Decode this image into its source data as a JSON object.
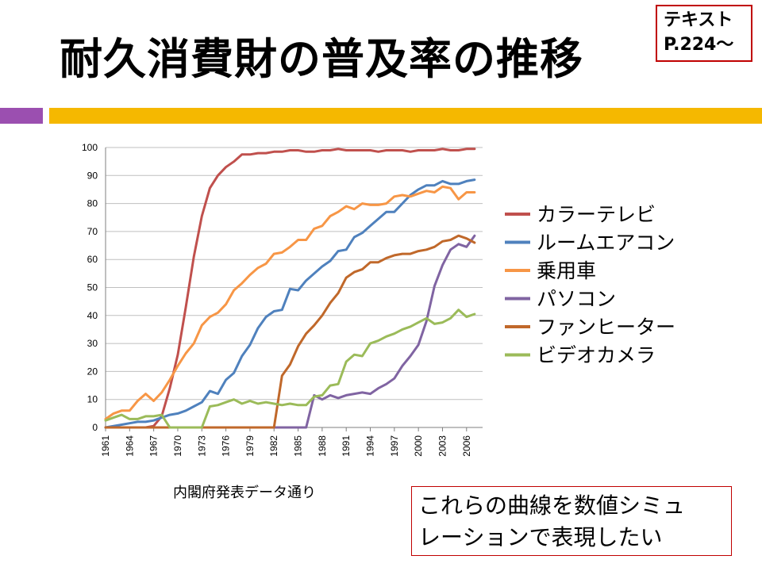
{
  "title": "耐久消費財の普及率の推移",
  "ref": {
    "line1": "テキスト",
    "line2": "P.224〜"
  },
  "source": "内閣府発表データ通り",
  "note": {
    "line1": "これらの曲線を数値シミュ",
    "line2": "レーションで表現したい"
  },
  "colors": {
    "accent_left": "#9b4fb0",
    "accent_right": "#f5b800",
    "box_border": "#c00000"
  },
  "chart_data": {
    "type": "line",
    "ylim": [
      0,
      100
    ],
    "xlim": [
      1961,
      2008
    ],
    "grid": true,
    "legend": "right",
    "yticks": [
      0,
      10,
      20,
      30,
      40,
      50,
      60,
      70,
      80,
      90,
      100
    ],
    "xticks": [
      1961,
      1964,
      1967,
      1970,
      1973,
      1976,
      1979,
      1982,
      1985,
      1988,
      1991,
      1994,
      1997,
      2000,
      2003,
      2006
    ],
    "series": [
      {
        "name": "カラーテレビ",
        "color": "#c0504d",
        "x": [
          1961,
          1966,
          1967,
          1968,
          1969,
          1970,
          1971,
          1972,
          1973,
          1974,
          1975,
          1976,
          1977,
          1978,
          1979,
          1980,
          1981,
          1982,
          1983,
          1984,
          1985,
          1986,
          1987,
          1988,
          1989,
          1990,
          1991,
          1992,
          1993,
          1994,
          1995,
          1996,
          1997,
          1998,
          1999,
          2000,
          2001,
          2002,
          2003,
          2004,
          2005,
          2006,
          2007
        ],
        "y": [
          0,
          0,
          0.5,
          4,
          14,
          26,
          43,
          61,
          75.5,
          85.5,
          90,
          93,
          95,
          97.5,
          97.5,
          98,
          98,
          98.5,
          98.5,
          99,
          99,
          98.5,
          98.5,
          99,
          99,
          99.5,
          99,
          99,
          99,
          99,
          98.5,
          99,
          99,
          99,
          98.5,
          99,
          99,
          99,
          99.5,
          99,
          99,
          99.5,
          99.5
        ]
      },
      {
        "name": "ルームエアコン",
        "color": "#4f81bd",
        "x": [
          1961,
          1962,
          1963,
          1964,
          1965,
          1966,
          1967,
          1968,
          1969,
          1970,
          1971,
          1972,
          1973,
          1974,
          1975,
          1976,
          1977,
          1978,
          1979,
          1980,
          1981,
          1982,
          1983,
          1984,
          1985,
          1986,
          1987,
          1988,
          1989,
          1990,
          1991,
          1992,
          1993,
          1994,
          1995,
          1996,
          1997,
          1998,
          1999,
          2000,
          2001,
          2002,
          2003,
          2004,
          2005,
          2006,
          2007
        ],
        "y": [
          0,
          0.5,
          1,
          1.5,
          2,
          2,
          2.5,
          3.5,
          4.5,
          5,
          6,
          7.5,
          9,
          13,
          12,
          17,
          19.5,
          25.5,
          29.5,
          35.5,
          39.5,
          41.5,
          42,
          49.5,
          49,
          52.5,
          55,
          57.5,
          59.5,
          63,
          63.5,
          68,
          69.5,
          72,
          74.5,
          77,
          77,
          80,
          83,
          85,
          86.5,
          86.5,
          88,
          87,
          87,
          88,
          88.5
        ]
      },
      {
        "name": "乗用車",
        "color": "#f79646",
        "x": [
          1961,
          1962,
          1963,
          1964,
          1965,
          1966,
          1967,
          1968,
          1969,
          1970,
          1971,
          1972,
          1973,
          1974,
          1975,
          1976,
          1977,
          1978,
          1979,
          1980,
          1981,
          1982,
          1983,
          1984,
          1985,
          1986,
          1987,
          1988,
          1989,
          1990,
          1991,
          1992,
          1993,
          1994,
          1995,
          1996,
          1997,
          1998,
          1999,
          2000,
          2001,
          2002,
          2003,
          2004,
          2005,
          2006,
          2007
        ],
        "y": [
          3,
          5,
          6,
          6,
          9.5,
          12,
          9.5,
          12.5,
          17,
          22,
          26.5,
          30,
          36.5,
          39.5,
          41,
          44,
          49,
          51.5,
          54.5,
          57,
          58.5,
          62,
          62.5,
          64.5,
          67,
          67,
          71,
          72,
          75.5,
          77,
          79,
          78,
          80,
          79.5,
          79.5,
          80,
          82.5,
          83,
          82.5,
          83.5,
          84.5,
          84,
          86,
          85.5,
          81.5,
          84,
          84
        ]
      },
      {
        "name": "パソコン",
        "color": "#8064a2",
        "x": [
          1982,
          1983,
          1984,
          1985,
          1986,
          1987,
          1988,
          1989,
          1990,
          1991,
          1992,
          1993,
          1994,
          1995,
          1996,
          1997,
          1998,
          1999,
          2000,
          2001,
          2002,
          2003,
          2004,
          2005,
          2006,
          2007
        ],
        "y": [
          0,
          0,
          0,
          0,
          0,
          11.5,
          10,
          11.5,
          10.5,
          11.5,
          12,
          12.5,
          12,
          14,
          15.5,
          17.5,
          22,
          25.5,
          29.5,
          38,
          50.5,
          58,
          63.5,
          65.5,
          64.5,
          68.5
        ]
      },
      {
        "name": "ファンヒーター",
        "color": "#c0682a",
        "x": [
          1961,
          1982,
          1983,
          1984,
          1985,
          1986,
          1987,
          1988,
          1989,
          1990,
          1991,
          1992,
          1993,
          1994,
          1995,
          1996,
          1997,
          1998,
          1999,
          2000,
          2001,
          2002,
          2003,
          2004,
          2005,
          2006,
          2007
        ],
        "y": [
          0,
          0,
          18.5,
          22.5,
          29,
          33.5,
          36.5,
          40,
          44.5,
          48,
          53.5,
          55.5,
          56.5,
          59,
          59,
          60.5,
          61.5,
          62,
          62,
          63,
          63.5,
          64.5,
          66.5,
          67,
          68.5,
          67.5,
          66
        ]
      },
      {
        "name": "ビデオカメラ",
        "color": "#9bbb59",
        "x": [
          1961,
          1962,
          1963,
          1964,
          1965,
          1966,
          1967,
          1968,
          1969,
          1970,
          1971,
          1972,
          1973,
          1974,
          1975,
          1976,
          1977,
          1978,
          1979,
          1980,
          1981,
          1982,
          1983,
          1984,
          1985,
          1986,
          1987,
          1988,
          1989,
          1990,
          1991,
          1992,
          1993,
          1994,
          1995,
          1996,
          1997,
          1998,
          1999,
          2000,
          2001,
          2002,
          2003,
          2004,
          2005,
          2006,
          2007
        ],
        "y": [
          2.5,
          3.5,
          4.5,
          3,
          3,
          4,
          4,
          4.5,
          0,
          0,
          0,
          0,
          0,
          7.5,
          8,
          9,
          10,
          8.5,
          9.5,
          8.5,
          9,
          8.5,
          8,
          8.5,
          8,
          8,
          11,
          11.5,
          15,
          15.5,
          23.5,
          26,
          25.5,
          30,
          31,
          32.5,
          33.5,
          35,
          36,
          37.5,
          39,
          37,
          37.5,
          39,
          42,
          39.5,
          40.5
        ]
      }
    ]
  }
}
